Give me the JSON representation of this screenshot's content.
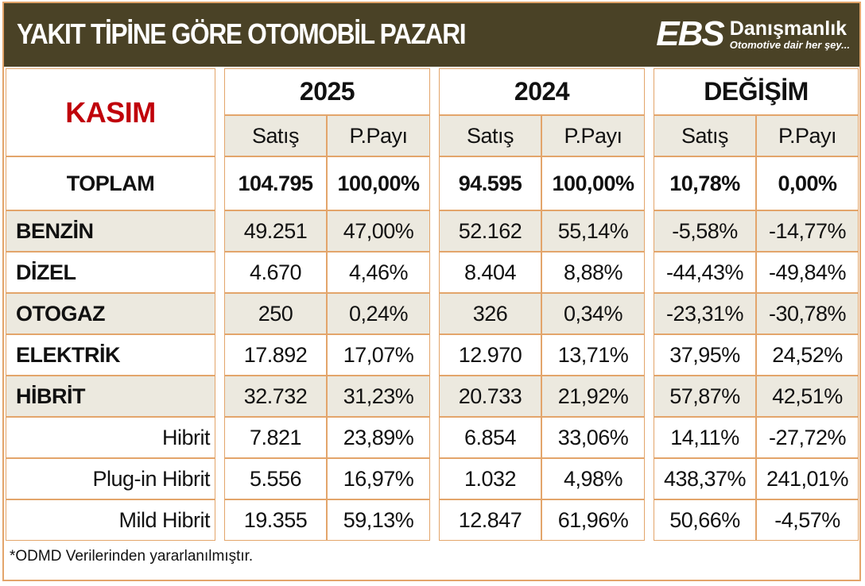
{
  "header": {
    "title": "YAKIT TİPİNE GÖRE OTOMOBİL PAZARI",
    "logo_main": "EBS",
    "logo_brand": "Danışmanlık",
    "logo_slogan": "Otomotive dair her şey..."
  },
  "colors": {
    "header_bg": "#4a4226",
    "border": "#e3a56b",
    "shade": "#ece9df",
    "month": "#c0000a"
  },
  "chart_data": {
    "type": "table",
    "title": "YAKIT TİPİNE GÖRE OTOMOBİL PAZARI",
    "period": "KASIM",
    "groups": [
      "2025",
      "2024",
      "DEĞİŞİM"
    ],
    "subheaders": [
      "Satış",
      "P.Payı",
      "Satış",
      "P.Payı",
      "Satış",
      "P.Payı"
    ],
    "rows": [
      {
        "label": "TOPLAM",
        "kind": "total",
        "values": [
          "104.795",
          "100,00%",
          "94.595",
          "100,00%",
          "10,78%",
          "0,00%"
        ]
      },
      {
        "label": "BENZİN",
        "kind": "main",
        "shade": true,
        "values": [
          "49.251",
          "47,00%",
          "52.162",
          "55,14%",
          "-5,58%",
          "-14,77%"
        ]
      },
      {
        "label": "DİZEL",
        "kind": "main",
        "shade": false,
        "values": [
          "4.670",
          "4,46%",
          "8.404",
          "8,88%",
          "-44,43%",
          "-49,84%"
        ]
      },
      {
        "label": "OTOGAZ",
        "kind": "main",
        "shade": true,
        "values": [
          "250",
          "0,24%",
          "326",
          "0,34%",
          "-23,31%",
          "-30,78%"
        ]
      },
      {
        "label": "ELEKTRİK",
        "kind": "main",
        "shade": false,
        "values": [
          "17.892",
          "17,07%",
          "12.970",
          "13,71%",
          "37,95%",
          "24,52%"
        ]
      },
      {
        "label": "HİBRİT",
        "kind": "main",
        "shade": true,
        "values": [
          "32.732",
          "31,23%",
          "20.733",
          "21,92%",
          "57,87%",
          "42,51%"
        ]
      },
      {
        "label": "Hibrit",
        "kind": "sub",
        "shade": false,
        "values": [
          "7.821",
          "23,89%",
          "6.854",
          "33,06%",
          "14,11%",
          "-27,72%"
        ]
      },
      {
        "label": "Plug-in Hibrit",
        "kind": "sub",
        "shade": false,
        "values": [
          "5.556",
          "16,97%",
          "1.032",
          "4,98%",
          "438,37%",
          "241,01%"
        ]
      },
      {
        "label": "Mild Hibrit",
        "kind": "sub",
        "shade": false,
        "values": [
          "19.355",
          "59,13%",
          "12.847",
          "61,96%",
          "50,66%",
          "-4,57%"
        ]
      }
    ],
    "footnote": "*ODMD Verilerinden yararlanılmıştır."
  }
}
